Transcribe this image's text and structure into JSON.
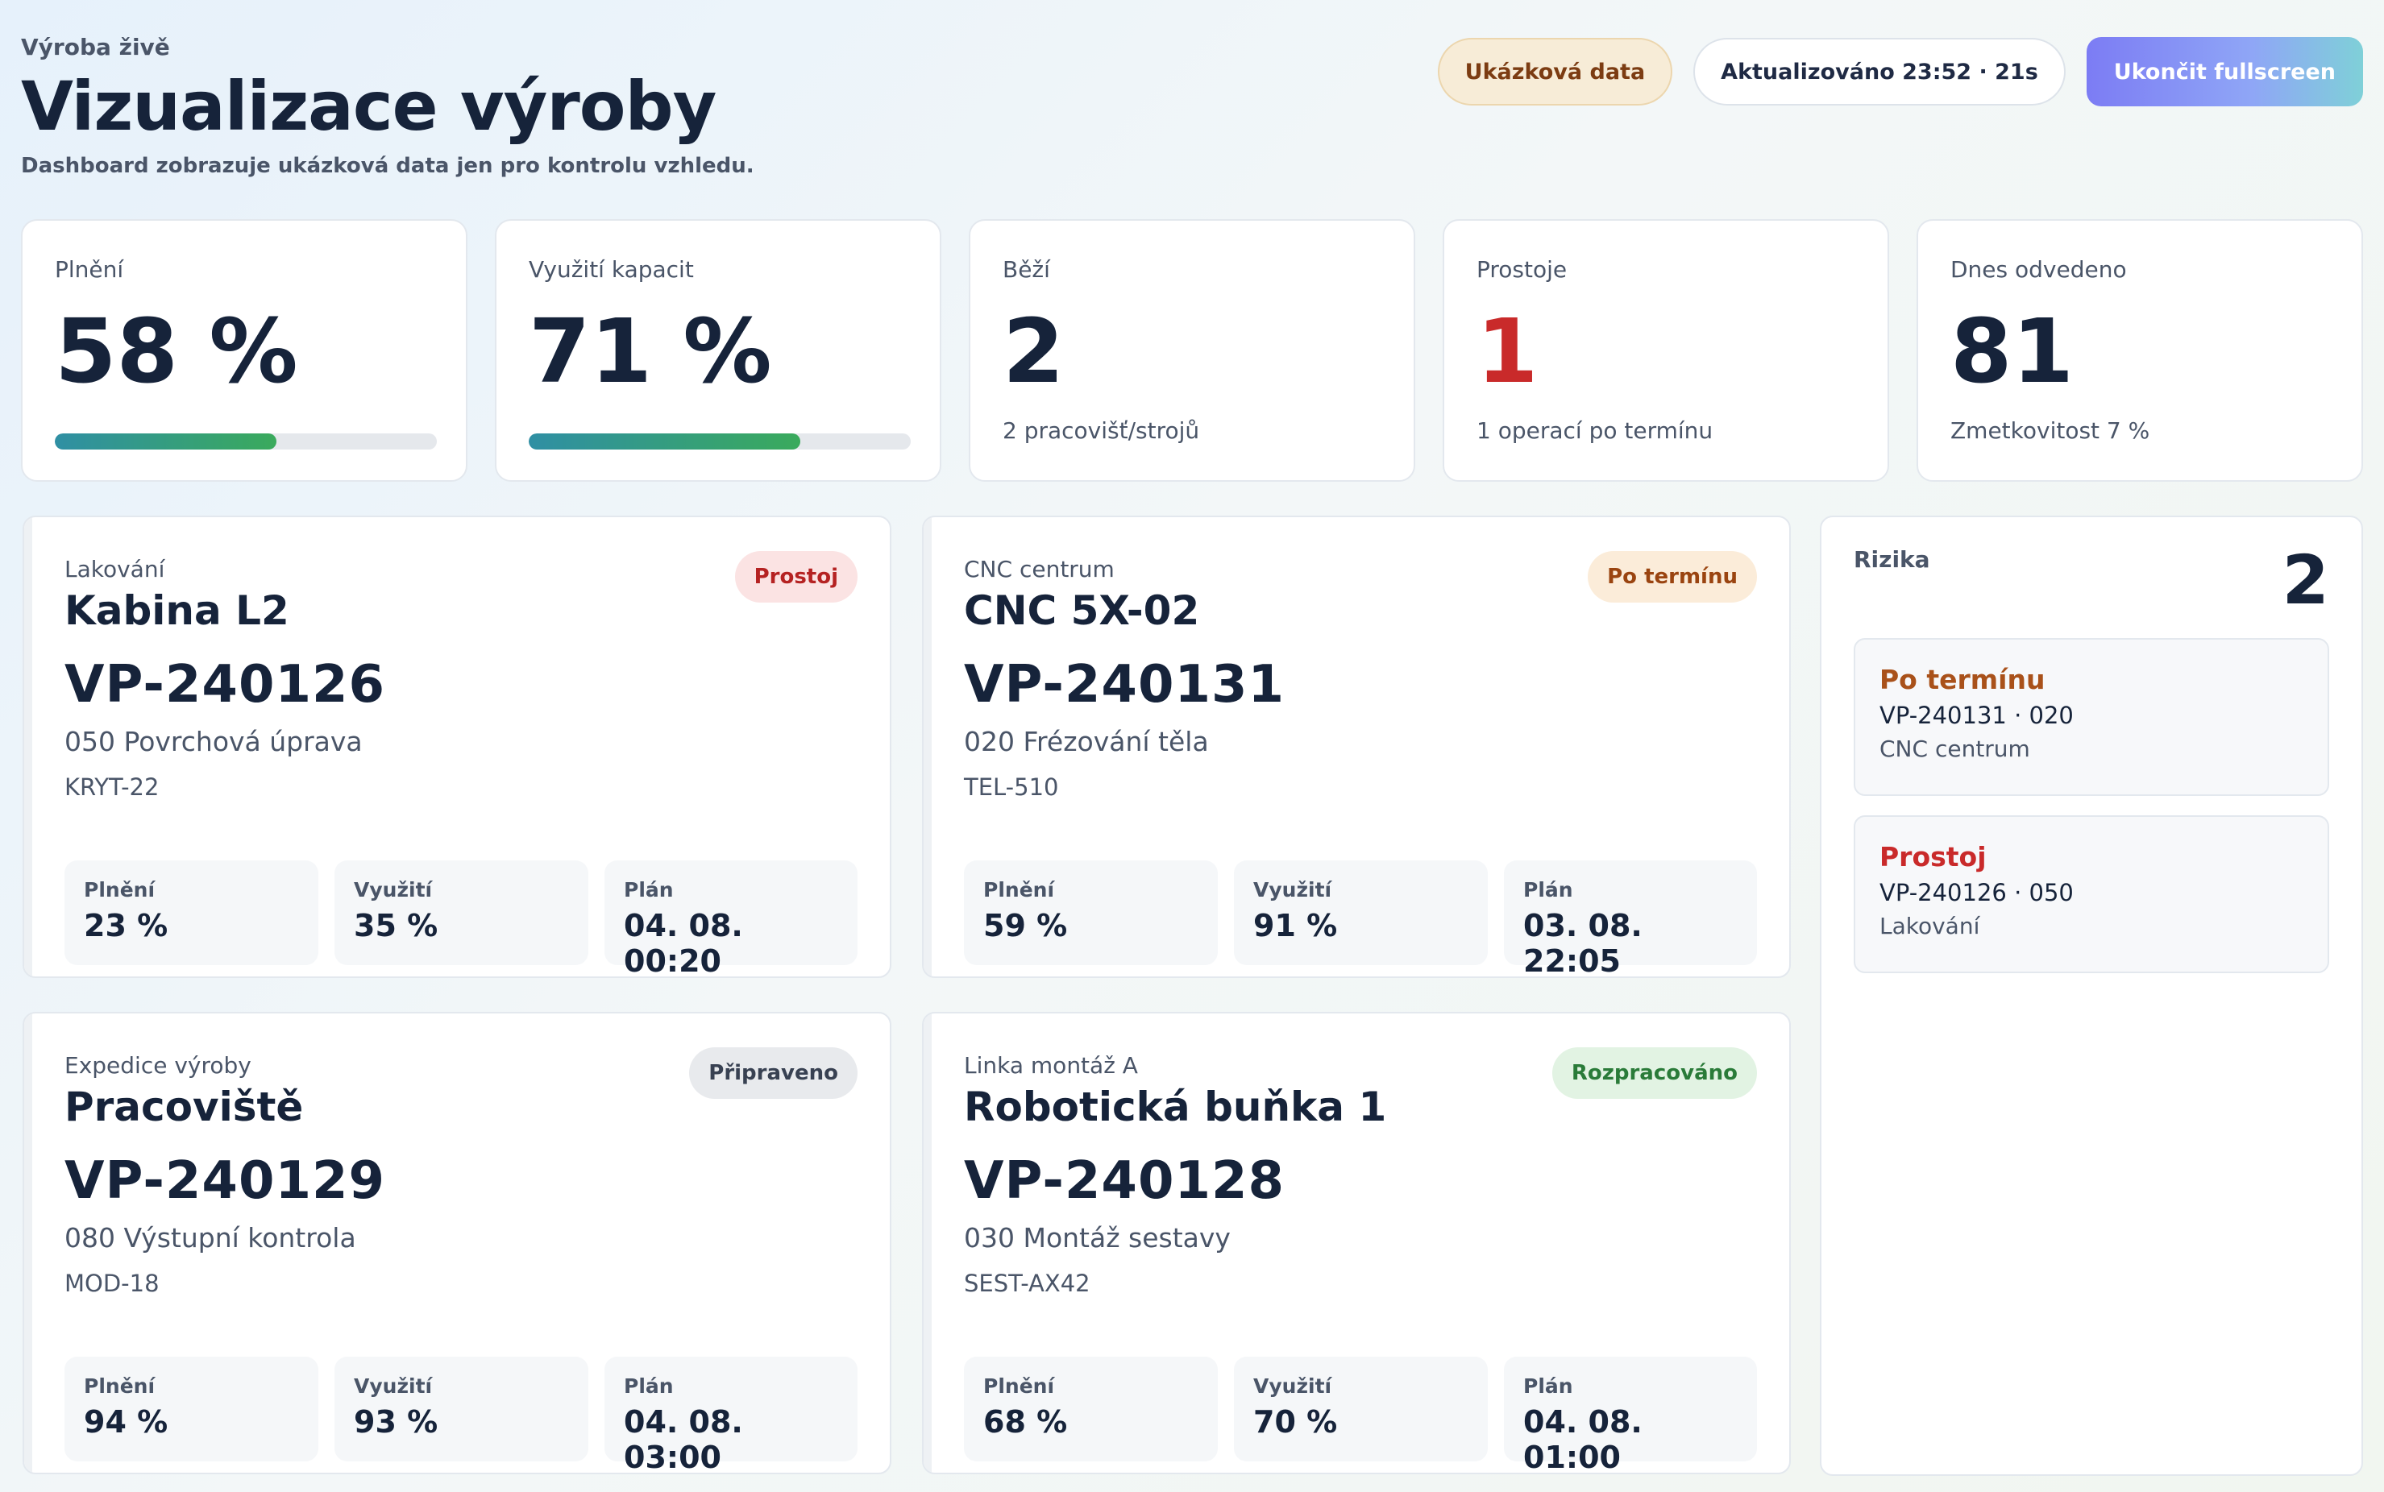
{
  "header": {
    "eyebrow": "Výroba živě",
    "title": "Vizualizace výroby",
    "subtitle": "Dashboard zobrazuje ukázková data jen pro kontrolu vzhledu.",
    "demo_label": "Ukázková data",
    "updated_label": "Aktualizováno 23:52 · 21s",
    "exit_label": "Ukončit fullscreen"
  },
  "kpis": [
    {
      "label": "Plnění",
      "value": "58 %",
      "progress": 0.58
    },
    {
      "label": "Využití kapacit",
      "value": "71 %",
      "progress": 0.71
    },
    {
      "label": "Běží",
      "value": "2",
      "note": "2 pracovišť/strojů"
    },
    {
      "label": "Prostoje",
      "value": "1",
      "note": "1 operací po termínu"
    },
    {
      "label": "Dnes odvedeno",
      "value": "81",
      "note": "Zmetkovitost 7 %"
    }
  ],
  "cards": [
    {
      "category": "Lakování",
      "name": "Kabina L2",
      "order": "VP-240126",
      "operation": "050 Povrchová úprava",
      "part": "KRYT-22",
      "status": "Prostoj",
      "metrics": [
        {
          "label": "Plnění",
          "value": "23 %"
        },
        {
          "label": "Využití",
          "value": "35 %"
        },
        {
          "label": "Plán",
          "value": "04. 08. 00:20"
        }
      ]
    },
    {
      "category": "CNC centrum",
      "name": "CNC 5X-02",
      "order": "VP-240131",
      "operation": "020 Frézování těla",
      "part": "TEL-510",
      "status": "Po termínu",
      "metrics": [
        {
          "label": "Plnění",
          "value": "59 %"
        },
        {
          "label": "Využití",
          "value": "91 %"
        },
        {
          "label": "Plán",
          "value": "03. 08. 22:05"
        }
      ]
    },
    {
      "category": "Expedice výroby",
      "name": "Pracoviště",
      "order": "VP-240129",
      "operation": "080 Výstupní kontrola",
      "part": "MOD-18",
      "status": "Připraveno",
      "metrics": [
        {
          "label": "Plnění",
          "value": "94 %"
        },
        {
          "label": "Využití",
          "value": "93 %"
        },
        {
          "label": "Plán",
          "value": "04. 08. 03:00"
        }
      ]
    },
    {
      "category": "Linka montáž A",
      "name": "Robotická buňka 1",
      "order": "VP-240128",
      "operation": "030 Montáž sestavy",
      "part": "SEST-AX42",
      "status": "Rozpracováno",
      "metrics": [
        {
          "label": "Plnění",
          "value": "68 %"
        },
        {
          "label": "Využití",
          "value": "70 %"
        },
        {
          "label": "Plán",
          "value": "04. 08. 01:00"
        }
      ]
    }
  ],
  "risks": {
    "title": "Rizika",
    "count": "2",
    "items": [
      {
        "title": "Po termínu",
        "ref": "VP-240131 · 020",
        "place": "CNC centrum"
      },
      {
        "title": "Prostoj",
        "ref": "VP-240126 · 050",
        "place": "Lakování"
      }
    ]
  }
}
